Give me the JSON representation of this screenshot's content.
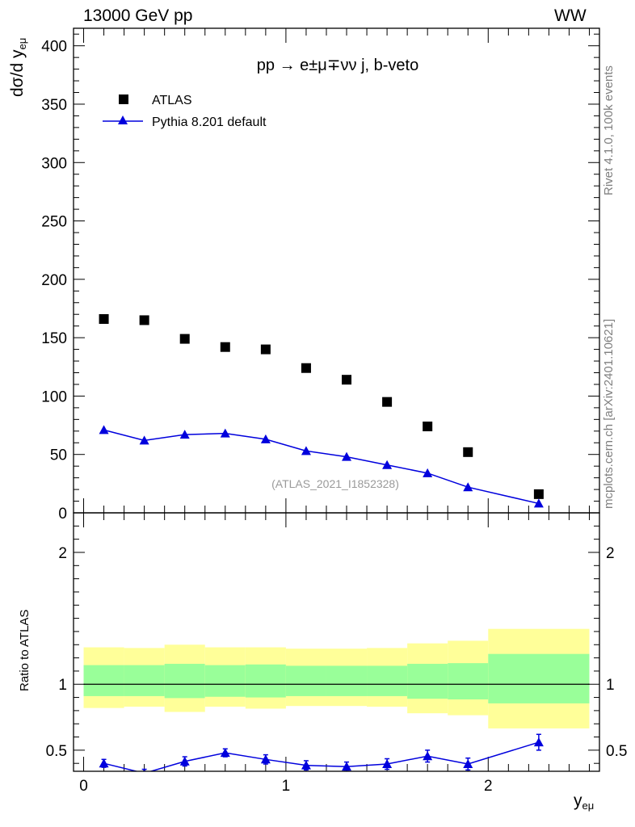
{
  "header": {
    "energy_label": "13000 GeV pp",
    "process_label": "WW"
  },
  "side_text": {
    "rivet": "Rivet 4.1.0,  100k events",
    "mcplots": "mcplots.cern.ch [arXiv:2401.10621]"
  },
  "analysis_tag": "(ATLAS_2021_I1852328)",
  "chart_data": [
    {
      "type": "scatter",
      "panel": "main",
      "title": "pp → e±μ∓νν j, b-veto",
      "ylabel": "dσ/d y",
      "ylabel_sub": "eμ",
      "xlabel": "y",
      "xlabel_sub": "eμ",
      "xlim": [
        -0.05,
        2.55
      ],
      "ylim": [
        0,
        415
      ],
      "y_ticks": [
        0,
        50,
        100,
        150,
        200,
        250,
        300,
        350,
        400
      ],
      "x_ticks": [
        0,
        1,
        2
      ],
      "legend": [
        "ATLAS",
        "Pythia 8.201 default"
      ],
      "legend_placement": "top-left",
      "series": [
        {
          "name": "ATLAS",
          "marker": "square",
          "color": "#000000",
          "x": [
            0.1,
            0.3,
            0.5,
            0.7,
            0.9,
            1.1,
            1.3,
            1.5,
            1.7,
            1.9,
            2.25
          ],
          "values": [
            166,
            165,
            149,
            142,
            140,
            124,
            114,
            95,
            74,
            52,
            16
          ]
        },
        {
          "name": "Pythia 8.201 default",
          "marker": "triangle",
          "color": "#0000dd",
          "x": [
            0.1,
            0.3,
            0.5,
            0.7,
            0.9,
            1.1,
            1.3,
            1.5,
            1.7,
            1.9,
            2.25
          ],
          "values": [
            71,
            62,
            67,
            68,
            63,
            53,
            48,
            41,
            34,
            22,
            8
          ],
          "errors": [
            3,
            2.5,
            3,
            3,
            2.5,
            2,
            2,
            2,
            1.8,
            1.5,
            1
          ]
        }
      ]
    },
    {
      "type": "line",
      "panel": "ratio",
      "ylabel": "Ratio to ATLAS",
      "xlabel": "y",
      "xlabel_sub": "eμ",
      "xlim": [
        -0.05,
        2.55
      ],
      "ylim": [
        0.34,
        2.3
      ],
      "y_ticks": [
        0.5,
        1,
        2
      ],
      "y_tick_labels": [
        "0.5",
        "1",
        "2"
      ],
      "x_ticks": [
        0,
        1,
        2
      ],
      "reference_line": 1,
      "bins": [
        [
          0,
          0.2
        ],
        [
          0.2,
          0.4
        ],
        [
          0.4,
          0.6
        ],
        [
          0.6,
          0.8
        ],
        [
          0.8,
          1.0
        ],
        [
          1.0,
          1.2
        ],
        [
          1.2,
          1.4
        ],
        [
          1.4,
          1.6
        ],
        [
          1.6,
          1.8
        ],
        [
          1.8,
          2.0
        ],
        [
          2.0,
          2.5
        ]
      ],
      "band_yellow": {
        "color": "#ffff99",
        "low": [
          0.82,
          0.83,
          0.79,
          0.83,
          0.815,
          0.835,
          0.835,
          0.83,
          0.78,
          0.765,
          0.665
        ],
        "high": [
          1.28,
          1.275,
          1.3,
          1.28,
          1.28,
          1.27,
          1.27,
          1.275,
          1.31,
          1.33,
          1.42
        ]
      },
      "band_green": {
        "color": "#99ff99",
        "low": [
          0.91,
          0.91,
          0.895,
          0.905,
          0.9,
          0.91,
          0.91,
          0.91,
          0.89,
          0.885,
          0.855
        ],
        "high": [
          1.145,
          1.145,
          1.155,
          1.145,
          1.15,
          1.14,
          1.14,
          1.14,
          1.155,
          1.16,
          1.23
        ]
      },
      "series": [
        {
          "name": "Pythia 8.201 default",
          "marker": "triangle",
          "color": "#0000dd",
          "x": [
            0.1,
            0.3,
            0.5,
            0.7,
            0.9,
            1.1,
            1.3,
            1.5,
            1.7,
            1.9,
            2.25
          ],
          "values": [
            0.4,
            0.325,
            0.415,
            0.48,
            0.43,
            0.385,
            0.375,
            0.395,
            0.455,
            0.395,
            0.56
          ],
          "errors": [
            0.03,
            0.03,
            0.035,
            0.03,
            0.035,
            0.035,
            0.035,
            0.04,
            0.045,
            0.045,
            0.06
          ]
        }
      ]
    }
  ]
}
